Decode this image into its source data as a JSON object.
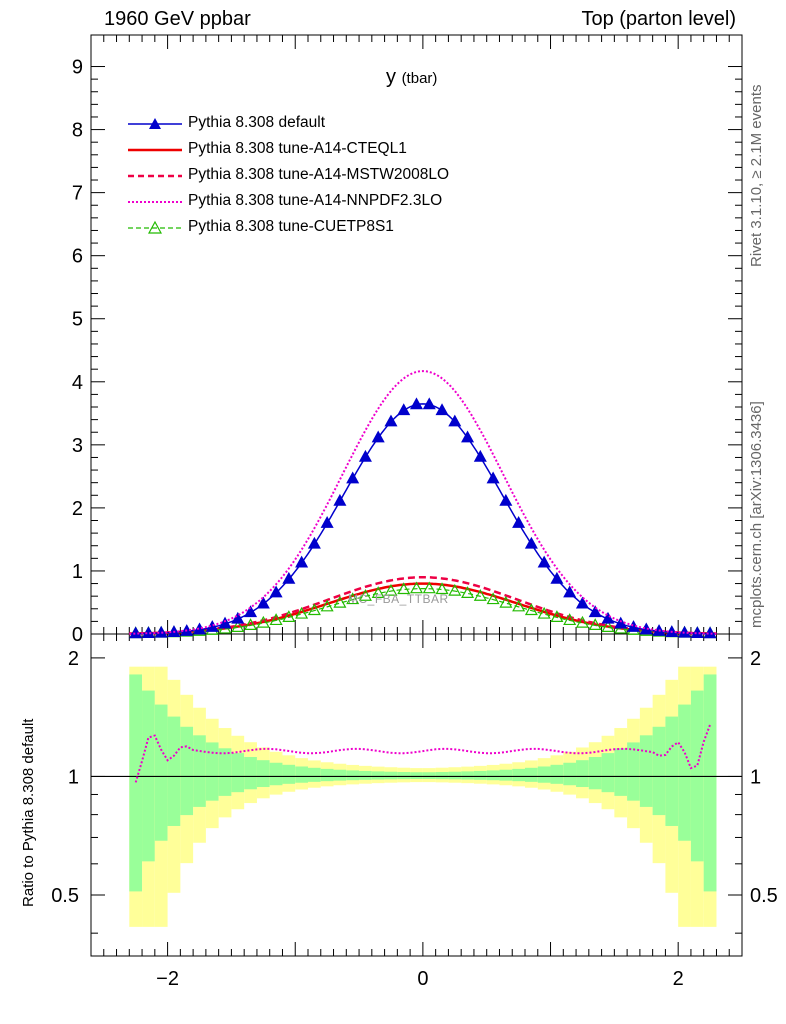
{
  "header": {
    "left": "1960 GeV ppbar",
    "right": "Top (parton level)"
  },
  "side_labels": {
    "top": "Rivet 3.1.10, ≥ 2.1M events",
    "bottom": "mcplots.cern.ch [arXiv:1306.3436]"
  },
  "watermark": "MC_FBA_TTBAR",
  "chart_data": [
    {
      "type": "line",
      "title": "y",
      "title_sub": "(tbar)",
      "xlabel": "",
      "ylabel": "",
      "xlim": [
        -2.6,
        2.5
      ],
      "ylim": [
        0,
        9.5
      ],
      "x_ticks": [
        -2,
        0,
        2
      ],
      "y_ticks": [
        0,
        1,
        2,
        3,
        4,
        5,
        6,
        7,
        8,
        9
      ],
      "legend_position": "top-left",
      "series": [
        {
          "name": "Pythia 8.308 default",
          "color": "#0000cc",
          "style": "solid-filled-triangles",
          "amplitude": 3.65,
          "width": 0.62
        },
        {
          "name": "Pythia 8.308 tune-A14-CTEQL1",
          "color": "#ee0000",
          "style": "solid",
          "amplitude": 0.8,
          "width": 0.74
        },
        {
          "name": "Pythia 8.308 tune-A14-MSTW2008LO",
          "color": "#ee0044",
          "style": "dashed",
          "amplitude": 0.9,
          "width": 0.74
        },
        {
          "name": "Pythia 8.308 tune-A14-NNPDF2.3LO",
          "color": "#ee00cc",
          "style": "dotted",
          "amplitude": 4.17,
          "width": 0.63
        },
        {
          "name": "Pythia 8.308 tune-CUETP8S1",
          "color": "#22bb00",
          "style": "dashed-open-triangles",
          "amplitude": 0.72,
          "width": 0.74
        }
      ]
    },
    {
      "type": "line",
      "title": "",
      "ylabel": "Ratio to Pythia 8.308 default",
      "xlim": [
        -2.6,
        2.5
      ],
      "ylim": [
        0.35,
        2.3
      ],
      "y_scale": "log",
      "y_ticks": [
        0.5,
        1,
        2
      ],
      "x_ticks": [
        -2,
        0,
        2
      ],
      "reference": 1,
      "nnpdf_ratio": 1.16
    }
  ]
}
